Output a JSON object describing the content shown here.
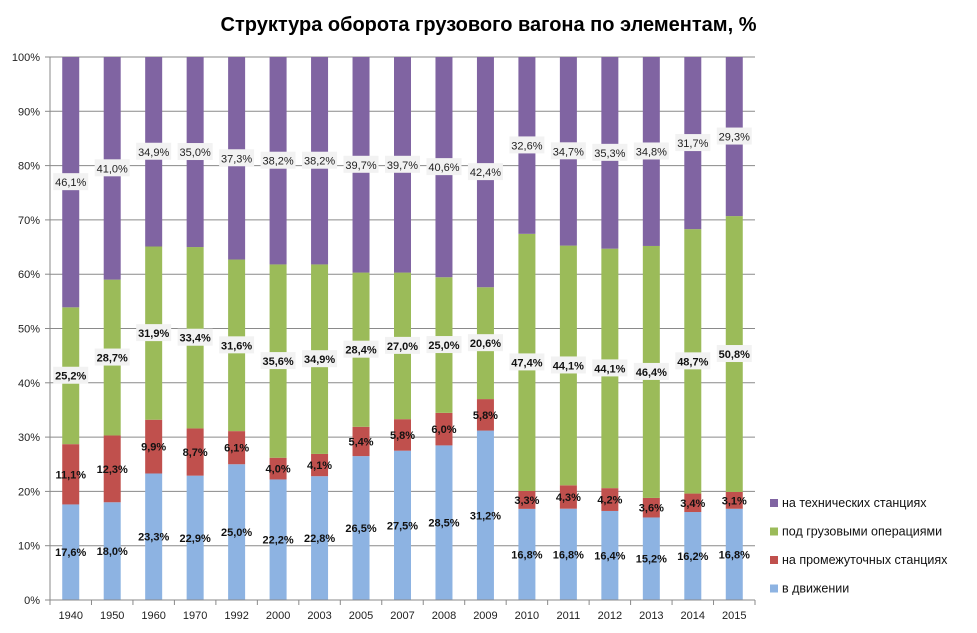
{
  "chart_data": {
    "type": "bar",
    "stacked": true,
    "percent_stacked": true,
    "title": "Структура оборота грузового вагона по элементам, %",
    "xlabel": "",
    "ylabel": "",
    "ylim": [
      0,
      100
    ],
    "yticks": [
      "0%",
      "10%",
      "20%",
      "30%",
      "40%",
      "50%",
      "60%",
      "70%",
      "80%",
      "90%",
      "100%"
    ],
    "grid": true,
    "legend_position": "right",
    "categories": [
      "1940",
      "1950",
      "1960",
      "1970",
      "1992",
      "2000",
      "2003",
      "2005",
      "2007",
      "2008",
      "2009",
      "2010",
      "2011",
      "2012",
      "2013",
      "2014",
      "2015"
    ],
    "series": [
      {
        "name": "в движении",
        "color": "#8DB3E2",
        "values": [
          17.6,
          18.0,
          23.3,
          22.9,
          25.0,
          22.2,
          22.8,
          26.5,
          27.5,
          28.5,
          31.2,
          16.8,
          16.8,
          16.4,
          15.2,
          16.2,
          16.8
        ],
        "labels": [
          "17,6%",
          "18,0%",
          "23,3%",
          "22,9%",
          "25,0%",
          "22,2%",
          "22,8%",
          "26,5%",
          "27,5%",
          "28,5%",
          "31,2%",
          "16,8%",
          "16,8%",
          "16,4%",
          "15,2%",
          "16,2%",
          "16,8%"
        ]
      },
      {
        "name": "на промежуточных станциях",
        "color": "#C0504D",
        "values": [
          11.1,
          12.3,
          9.9,
          8.7,
          6.1,
          4.0,
          4.1,
          5.4,
          5.8,
          6.0,
          5.8,
          3.3,
          4.3,
          4.2,
          3.6,
          3.4,
          3.1
        ],
        "labels": [
          "11,1%",
          "12,3%",
          "9,9%",
          "8,7%",
          "6,1%",
          "4,0%",
          "4,1%",
          "5,4%",
          "5,8%",
          "6,0%",
          "5,8%",
          "3,3%",
          "4,3%",
          "4,2%",
          "3,6%",
          "3,4%",
          "3,1%"
        ]
      },
      {
        "name": "под грузовыми операциями",
        "color": "#9BBB59",
        "values": [
          25.2,
          28.7,
          31.9,
          33.4,
          31.6,
          35.6,
          34.9,
          28.4,
          27.0,
          25.0,
          20.6,
          47.4,
          44.1,
          44.1,
          46.4,
          48.7,
          50.8
        ],
        "labels": [
          "25,2%",
          "28,7%",
          "31,9%",
          "33,4%",
          "31,6%",
          "35,6%",
          "34,9%",
          "28,4%",
          "27,0%",
          "25,0%",
          "20,6%",
          "47,4%",
          "44,1%",
          "44,1%",
          "46,4%",
          "48,7%",
          "50,8%"
        ]
      },
      {
        "name": "на технических станциях",
        "color": "#8064A2",
        "values": [
          46.1,
          41.0,
          34.9,
          35.0,
          37.3,
          38.2,
          38.2,
          39.7,
          39.7,
          40.6,
          42.4,
          32.6,
          34.7,
          35.3,
          34.8,
          31.7,
          29.3
        ],
        "labels": [
          "46,1%",
          "41,0%",
          "34,9%",
          "35,0%",
          "37,3%",
          "38,2%",
          "38,2%",
          "39,7%",
          "39,7%",
          "40,6%",
          "42,4%",
          "32,6%",
          "34,7%",
          "35,3%",
          "34,8%",
          "31,7%",
          "29,3%"
        ]
      }
    ],
    "legend_order": [
      "на технических станциях",
      "под грузовыми операциями",
      "на промежуточных станциях",
      "в движении"
    ]
  }
}
